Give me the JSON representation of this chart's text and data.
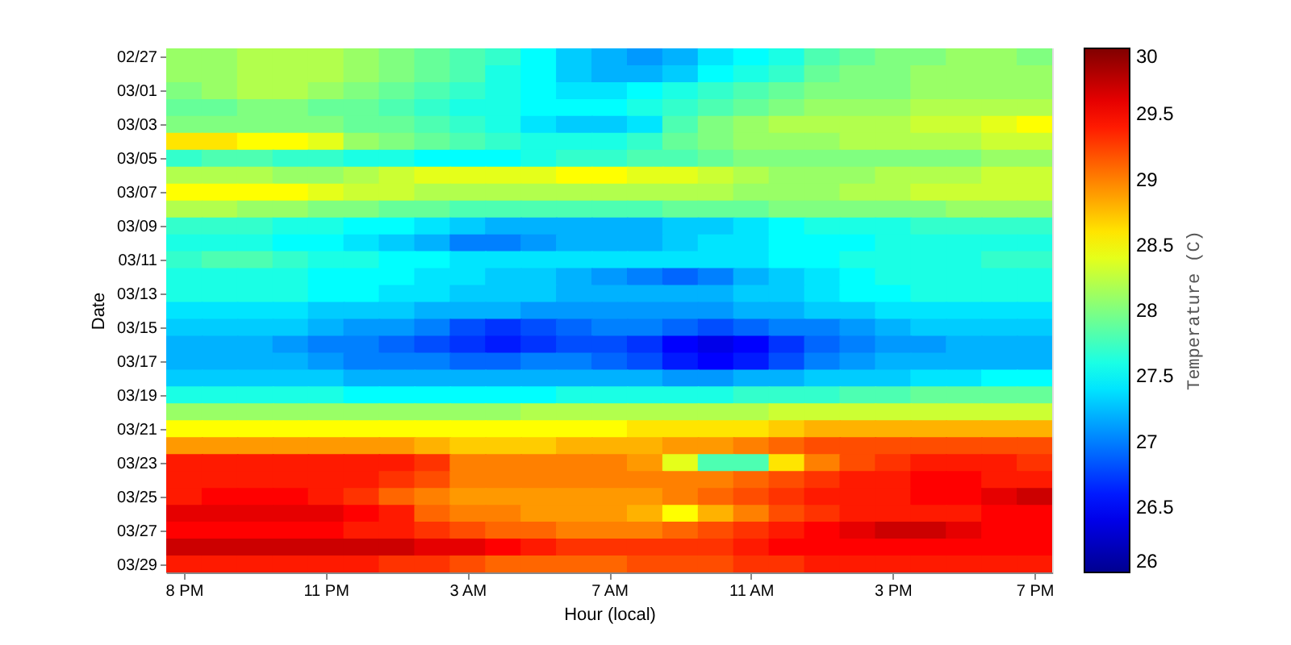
{
  "chart_data": {
    "type": "heatmap",
    "xlabel": "Hour (local)",
    "ylabel": "Date",
    "clabel": "Temperature (C)",
    "categories": [
      "8 PM",
      null,
      null,
      null,
      "11 PM",
      null,
      null,
      null,
      "3 AM",
      null,
      null,
      null,
      "7 AM",
      null,
      null,
      null,
      "11 AM",
      null,
      null,
      null,
      "3 PM",
      null,
      null,
      null,
      "7 PM"
    ],
    "y_categories": [
      "02/27",
      null,
      "03/01",
      null,
      "03/03",
      null,
      "03/05",
      null,
      "03/07",
      null,
      "03/09",
      null,
      "03/11",
      null,
      "03/13",
      null,
      "03/15",
      null,
      "03/17",
      null,
      "03/19",
      null,
      "03/21",
      null,
      "03/23",
      null,
      "03/25",
      null,
      "03/27",
      null,
      "03/29"
    ],
    "cells": [
      [
        28.1,
        28.1,
        28.2,
        28.2,
        28.2,
        28.1,
        28.0,
        27.9,
        27.8,
        27.7,
        27.5,
        27.3,
        27.2,
        27.1,
        27.2,
        27.4,
        27.5,
        27.6,
        27.8,
        27.9,
        28.0,
        28.0,
        28.1,
        28.1,
        28.0
      ],
      [
        28.1,
        28.1,
        28.2,
        28.2,
        28.2,
        28.1,
        28.0,
        27.9,
        27.8,
        27.6,
        27.5,
        27.3,
        27.2,
        27.2,
        27.3,
        27.5,
        27.6,
        27.7,
        27.9,
        28.0,
        28.0,
        28.1,
        28.1,
        28.1,
        28.1
      ],
      [
        28.0,
        28.1,
        28.2,
        28.2,
        28.1,
        28.0,
        27.9,
        27.8,
        27.7,
        27.6,
        27.5,
        27.4,
        27.4,
        27.5,
        27.6,
        27.7,
        27.8,
        27.9,
        28.0,
        28.0,
        28.0,
        28.1,
        28.1,
        28.1,
        28.1
      ],
      [
        27.9,
        27.9,
        28.0,
        28.0,
        27.9,
        27.9,
        27.8,
        27.7,
        27.6,
        27.6,
        27.5,
        27.5,
        27.5,
        27.6,
        27.7,
        27.8,
        27.9,
        28.0,
        28.1,
        28.1,
        28.1,
        28.2,
        28.2,
        28.2,
        28.2
      ],
      [
        28.0,
        28.0,
        28.0,
        28.0,
        28.0,
        27.9,
        27.9,
        27.8,
        27.7,
        27.6,
        27.4,
        27.3,
        27.3,
        27.4,
        27.8,
        28.0,
        28.1,
        28.2,
        28.2,
        28.2,
        28.2,
        28.3,
        28.3,
        28.4,
        28.5
      ],
      [
        28.6,
        28.6,
        28.5,
        28.5,
        28.4,
        28.1,
        28.0,
        27.9,
        27.8,
        27.7,
        27.6,
        27.6,
        27.6,
        27.7,
        27.9,
        28.0,
        28.1,
        28.1,
        28.1,
        28.2,
        28.2,
        28.2,
        28.2,
        28.3,
        28.3
      ],
      [
        27.7,
        27.8,
        27.8,
        27.7,
        27.7,
        27.6,
        27.6,
        27.5,
        27.5,
        27.5,
        27.6,
        27.7,
        27.7,
        27.8,
        27.8,
        27.9,
        28.0,
        28.0,
        28.0,
        28.0,
        28.0,
        28.0,
        28.0,
        28.1,
        28.1
      ],
      [
        28.2,
        28.2,
        28.2,
        28.1,
        28.1,
        28.2,
        28.3,
        28.4,
        28.4,
        28.4,
        28.4,
        28.5,
        28.5,
        28.4,
        28.4,
        28.3,
        28.2,
        28.1,
        28.1,
        28.1,
        28.2,
        28.2,
        28.2,
        28.3,
        28.3
      ],
      [
        28.5,
        28.5,
        28.5,
        28.5,
        28.4,
        28.3,
        28.3,
        28.2,
        28.2,
        28.2,
        28.2,
        28.2,
        28.2,
        28.2,
        28.2,
        28.2,
        28.1,
        28.1,
        28.1,
        28.2,
        28.2,
        28.3,
        28.3,
        28.3,
        28.3
      ],
      [
        28.2,
        28.2,
        28.1,
        28.1,
        28.0,
        28.0,
        27.9,
        27.9,
        27.8,
        27.8,
        27.8,
        27.8,
        27.8,
        27.8,
        27.9,
        27.9,
        27.9,
        28.0,
        28.0,
        28.0,
        28.0,
        28.0,
        28.1,
        28.1,
        28.1
      ],
      [
        27.7,
        27.7,
        27.7,
        27.6,
        27.6,
        27.5,
        27.5,
        27.4,
        27.3,
        27.2,
        27.2,
        27.2,
        27.2,
        27.2,
        27.3,
        27.3,
        27.4,
        27.5,
        27.6,
        27.6,
        27.6,
        27.7,
        27.7,
        27.7,
        27.7
      ],
      [
        27.6,
        27.6,
        27.6,
        27.5,
        27.5,
        27.4,
        27.3,
        27.2,
        27.0,
        27.0,
        27.1,
        27.2,
        27.2,
        27.2,
        27.3,
        27.4,
        27.4,
        27.5,
        27.5,
        27.5,
        27.6,
        27.6,
        27.6,
        27.6,
        27.6
      ],
      [
        27.7,
        27.8,
        27.8,
        27.7,
        27.6,
        27.6,
        27.5,
        27.5,
        27.4,
        27.4,
        27.4,
        27.4,
        27.4,
        27.4,
        27.4,
        27.4,
        27.4,
        27.5,
        27.5,
        27.6,
        27.6,
        27.6,
        27.6,
        27.7,
        27.7
      ],
      [
        27.6,
        27.6,
        27.6,
        27.6,
        27.5,
        27.5,
        27.5,
        27.4,
        27.4,
        27.3,
        27.3,
        27.2,
        27.1,
        27.0,
        26.9,
        27.0,
        27.2,
        27.3,
        27.4,
        27.5,
        27.6,
        27.6,
        27.6,
        27.6,
        27.6
      ],
      [
        27.6,
        27.6,
        27.6,
        27.6,
        27.5,
        27.5,
        27.4,
        27.4,
        27.3,
        27.3,
        27.3,
        27.2,
        27.2,
        27.2,
        27.2,
        27.2,
        27.3,
        27.3,
        27.4,
        27.5,
        27.5,
        27.6,
        27.6,
        27.6,
        27.6
      ],
      [
        27.4,
        27.4,
        27.4,
        27.4,
        27.3,
        27.3,
        27.3,
        27.2,
        27.2,
        27.2,
        27.1,
        27.1,
        27.1,
        27.1,
        27.1,
        27.1,
        27.2,
        27.2,
        27.3,
        27.3,
        27.4,
        27.4,
        27.4,
        27.4,
        27.4
      ],
      [
        27.3,
        27.3,
        27.3,
        27.3,
        27.2,
        27.1,
        27.1,
        27.0,
        26.8,
        26.7,
        26.8,
        26.9,
        27.0,
        27.0,
        26.9,
        26.8,
        26.9,
        27.0,
        27.0,
        27.1,
        27.2,
        27.3,
        27.3,
        27.3,
        27.3
      ],
      [
        27.2,
        27.2,
        27.2,
        27.1,
        27.0,
        27.0,
        26.9,
        26.8,
        26.7,
        26.6,
        26.7,
        26.8,
        26.8,
        26.7,
        26.5,
        26.4,
        26.5,
        26.7,
        26.9,
        27.0,
        27.1,
        27.1,
        27.2,
        27.2,
        27.2
      ],
      [
        27.2,
        27.2,
        27.2,
        27.2,
        27.1,
        27.0,
        27.0,
        27.0,
        26.9,
        26.9,
        27.0,
        27.0,
        26.9,
        26.8,
        26.6,
        26.5,
        26.6,
        26.8,
        27.0,
        27.1,
        27.2,
        27.2,
        27.2,
        27.2,
        27.2
      ],
      [
        27.3,
        27.3,
        27.3,
        27.3,
        27.3,
        27.2,
        27.2,
        27.2,
        27.2,
        27.2,
        27.2,
        27.2,
        27.2,
        27.2,
        27.1,
        27.1,
        27.2,
        27.2,
        27.3,
        27.3,
        27.3,
        27.4,
        27.4,
        27.5,
        27.5
      ],
      [
        27.6,
        27.6,
        27.6,
        27.6,
        27.6,
        27.5,
        27.5,
        27.5,
        27.5,
        27.5,
        27.5,
        27.6,
        27.6,
        27.6,
        27.6,
        27.6,
        27.7,
        27.7,
        27.7,
        27.8,
        27.8,
        27.9,
        27.9,
        27.9,
        27.9
      ],
      [
        28.1,
        28.1,
        28.1,
        28.1,
        28.1,
        28.1,
        28.1,
        28.1,
        28.1,
        28.1,
        28.2,
        28.2,
        28.2,
        28.2,
        28.2,
        28.2,
        28.2,
        28.3,
        28.3,
        28.3,
        28.3,
        28.3,
        28.3,
        28.3,
        28.3
      ],
      [
        28.5,
        28.5,
        28.5,
        28.5,
        28.5,
        28.5,
        28.5,
        28.5,
        28.5,
        28.5,
        28.5,
        28.5,
        28.5,
        28.6,
        28.6,
        28.6,
        28.6,
        28.7,
        28.8,
        28.8,
        28.8,
        28.8,
        28.8,
        28.8,
        28.8
      ],
      [
        28.9,
        28.9,
        28.9,
        28.9,
        28.9,
        28.9,
        28.9,
        28.8,
        28.7,
        28.7,
        28.7,
        28.8,
        28.8,
        28.8,
        28.9,
        28.9,
        29.0,
        29.1,
        29.2,
        29.2,
        29.2,
        29.2,
        29.2,
        29.2,
        29.2
      ],
      [
        29.4,
        29.4,
        29.4,
        29.4,
        29.4,
        29.4,
        29.4,
        29.3,
        29.0,
        29.0,
        29.0,
        29.0,
        29.0,
        28.9,
        28.4,
        27.8,
        27.8,
        28.6,
        29.0,
        29.2,
        29.3,
        29.4,
        29.4,
        29.4,
        29.3
      ],
      [
        29.4,
        29.4,
        29.4,
        29.4,
        29.4,
        29.4,
        29.3,
        29.2,
        29.0,
        29.0,
        29.0,
        29.0,
        29.0,
        29.0,
        29.0,
        29.0,
        29.1,
        29.2,
        29.3,
        29.4,
        29.4,
        29.5,
        29.5,
        29.4,
        29.4
      ],
      [
        29.4,
        29.5,
        29.5,
        29.5,
        29.4,
        29.3,
        29.1,
        29.0,
        28.9,
        28.9,
        28.9,
        28.9,
        28.9,
        28.9,
        29.0,
        29.1,
        29.2,
        29.3,
        29.4,
        29.4,
        29.4,
        29.5,
        29.5,
        29.6,
        29.7
      ],
      [
        29.6,
        29.6,
        29.6,
        29.6,
        29.6,
        29.5,
        29.4,
        29.1,
        29.0,
        29.0,
        28.9,
        28.9,
        28.9,
        28.8,
        28.5,
        28.8,
        29.0,
        29.2,
        29.3,
        29.4,
        29.4,
        29.4,
        29.4,
        29.5,
        29.5
      ],
      [
        29.5,
        29.5,
        29.5,
        29.5,
        29.5,
        29.4,
        29.4,
        29.3,
        29.2,
        29.1,
        29.1,
        29.0,
        29.0,
        29.0,
        29.1,
        29.2,
        29.3,
        29.4,
        29.5,
        29.6,
        29.7,
        29.7,
        29.6,
        29.5,
        29.5
      ],
      [
        29.7,
        29.7,
        29.7,
        29.7,
        29.7,
        29.7,
        29.7,
        29.6,
        29.6,
        29.5,
        29.4,
        29.3,
        29.3,
        29.3,
        29.3,
        29.3,
        29.4,
        29.5,
        29.5,
        29.5,
        29.5,
        29.5,
        29.5,
        29.5,
        29.5
      ],
      [
        29.4,
        29.4,
        29.4,
        29.4,
        29.4,
        29.4,
        29.3,
        29.3,
        29.2,
        29.1,
        29.1,
        29.1,
        29.1,
        29.2,
        29.2,
        29.2,
        29.3,
        29.3,
        29.4,
        29.4,
        29.4,
        29.4,
        29.4,
        29.4,
        29.4
      ]
    ],
    "clim": [
      26,
      30
    ],
    "cticks": [
      26,
      26.5,
      27,
      27.5,
      28,
      28.5,
      29,
      29.5,
      30
    ]
  }
}
